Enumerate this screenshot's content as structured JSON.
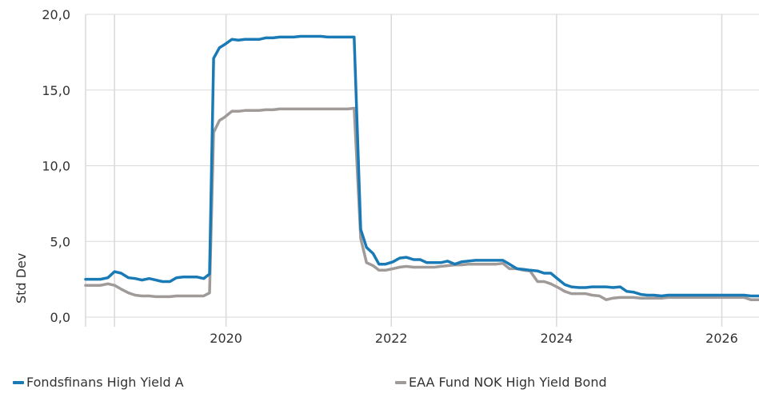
{
  "chart_data": {
    "type": "line",
    "title": "",
    "xlabel": "",
    "ylabel": "Std Dev",
    "ylim": [
      0,
      20
    ],
    "xlim": [
      2018.3,
      2026.45
    ],
    "y_ticks": [
      {
        "value": 0,
        "label": "0,0"
      },
      {
        "value": 5,
        "label": "5,0"
      },
      {
        "value": 10,
        "label": "10,0"
      },
      {
        "value": 15,
        "label": "15,0"
      },
      {
        "value": 20,
        "label": "20,0"
      }
    ],
    "x_ticks": [
      {
        "value": 2020,
        "label": "2020"
      },
      {
        "value": 2022,
        "label": "2022"
      },
      {
        "value": 2024,
        "label": "2024"
      },
      {
        "value": 2026,
        "label": "2026"
      }
    ],
    "x_gridlines": [
      2018.65,
      2020,
      2022,
      2024,
      2026
    ],
    "grid": true,
    "legend_position": "bottom",
    "series": [
      {
        "name": "Fondsfinans High Yield A",
        "color": "#1a7ab5",
        "points": [
          [
            2018.3,
            2.5
          ],
          [
            2018.4,
            2.5
          ],
          [
            2018.48,
            2.5
          ],
          [
            2018.57,
            2.6
          ],
          [
            2018.65,
            3.0
          ],
          [
            2018.73,
            2.9
          ],
          [
            2018.82,
            2.6
          ],
          [
            2018.9,
            2.55
          ],
          [
            2018.98,
            2.45
          ],
          [
            2019.07,
            2.55
          ],
          [
            2019.15,
            2.45
          ],
          [
            2019.23,
            2.35
          ],
          [
            2019.32,
            2.35
          ],
          [
            2019.4,
            2.6
          ],
          [
            2019.48,
            2.65
          ],
          [
            2019.57,
            2.65
          ],
          [
            2019.65,
            2.65
          ],
          [
            2019.73,
            2.55
          ],
          [
            2019.8,
            2.85
          ],
          [
            2019.85,
            17.1
          ],
          [
            2019.92,
            17.8
          ],
          [
            2019.98,
            18.0
          ],
          [
            2020.07,
            18.35
          ],
          [
            2020.15,
            18.3
          ],
          [
            2020.23,
            18.35
          ],
          [
            2020.32,
            18.35
          ],
          [
            2020.4,
            18.35
          ],
          [
            2020.48,
            18.45
          ],
          [
            2020.57,
            18.45
          ],
          [
            2020.65,
            18.5
          ],
          [
            2020.73,
            18.5
          ],
          [
            2020.82,
            18.5
          ],
          [
            2020.9,
            18.55
          ],
          [
            2020.98,
            18.55
          ],
          [
            2021.07,
            18.55
          ],
          [
            2021.15,
            18.55
          ],
          [
            2021.23,
            18.5
          ],
          [
            2021.32,
            18.5
          ],
          [
            2021.4,
            18.5
          ],
          [
            2021.48,
            18.5
          ],
          [
            2021.55,
            18.5
          ],
          [
            2021.63,
            5.8
          ],
          [
            2021.7,
            4.6
          ],
          [
            2021.78,
            4.2
          ],
          [
            2021.85,
            3.5
          ],
          [
            2021.93,
            3.5
          ],
          [
            2022.02,
            3.65
          ],
          [
            2022.1,
            3.9
          ],
          [
            2022.18,
            3.95
          ],
          [
            2022.27,
            3.8
          ],
          [
            2022.35,
            3.8
          ],
          [
            2022.43,
            3.6
          ],
          [
            2022.52,
            3.6
          ],
          [
            2022.6,
            3.6
          ],
          [
            2022.68,
            3.7
          ],
          [
            2022.77,
            3.5
          ],
          [
            2022.85,
            3.65
          ],
          [
            2022.93,
            3.7
          ],
          [
            2023.02,
            3.75
          ],
          [
            2023.1,
            3.75
          ],
          [
            2023.18,
            3.75
          ],
          [
            2023.27,
            3.75
          ],
          [
            2023.35,
            3.75
          ],
          [
            2023.43,
            3.5
          ],
          [
            2023.52,
            3.2
          ],
          [
            2023.6,
            3.15
          ],
          [
            2023.68,
            3.1
          ],
          [
            2023.77,
            3.05
          ],
          [
            2023.85,
            2.9
          ],
          [
            2023.93,
            2.9
          ],
          [
            2024.02,
            2.5
          ],
          [
            2024.1,
            2.15
          ],
          [
            2024.18,
            2.0
          ],
          [
            2024.27,
            1.95
          ],
          [
            2024.35,
            1.95
          ],
          [
            2024.43,
            2.0
          ],
          [
            2024.52,
            2.0
          ],
          [
            2024.6,
            2.0
          ],
          [
            2024.68,
            1.95
          ],
          [
            2024.77,
            2.0
          ],
          [
            2024.85,
            1.7
          ],
          [
            2024.93,
            1.65
          ],
          [
            2025.02,
            1.5
          ],
          [
            2025.1,
            1.45
          ],
          [
            2025.18,
            1.45
          ],
          [
            2025.27,
            1.4
          ],
          [
            2025.35,
            1.45
          ],
          [
            2025.43,
            1.45
          ],
          [
            2025.52,
            1.45
          ],
          [
            2025.6,
            1.45
          ],
          [
            2025.68,
            1.45
          ],
          [
            2025.77,
            1.45
          ],
          [
            2025.85,
            1.45
          ],
          [
            2025.93,
            1.45
          ],
          [
            2026.02,
            1.45
          ],
          [
            2026.1,
            1.45
          ],
          [
            2026.18,
            1.45
          ],
          [
            2026.27,
            1.45
          ],
          [
            2026.35,
            1.4
          ],
          [
            2026.45,
            1.4
          ]
        ]
      },
      {
        "name": "EAA Fund NOK High Yield Bond",
        "color": "#a09a98",
        "points": [
          [
            2018.3,
            2.1
          ],
          [
            2018.4,
            2.1
          ],
          [
            2018.48,
            2.1
          ],
          [
            2018.57,
            2.2
          ],
          [
            2018.65,
            2.1
          ],
          [
            2018.73,
            1.85
          ],
          [
            2018.82,
            1.6
          ],
          [
            2018.9,
            1.45
          ],
          [
            2018.98,
            1.4
          ],
          [
            2019.07,
            1.4
          ],
          [
            2019.15,
            1.35
          ],
          [
            2019.23,
            1.35
          ],
          [
            2019.32,
            1.35
          ],
          [
            2019.4,
            1.4
          ],
          [
            2019.48,
            1.4
          ],
          [
            2019.57,
            1.4
          ],
          [
            2019.65,
            1.4
          ],
          [
            2019.73,
            1.4
          ],
          [
            2019.8,
            1.6
          ],
          [
            2019.85,
            12.2
          ],
          [
            2019.92,
            13.0
          ],
          [
            2019.98,
            13.2
          ],
          [
            2020.07,
            13.6
          ],
          [
            2020.15,
            13.6
          ],
          [
            2020.23,
            13.65
          ],
          [
            2020.32,
            13.65
          ],
          [
            2020.4,
            13.65
          ],
          [
            2020.48,
            13.7
          ],
          [
            2020.57,
            13.7
          ],
          [
            2020.65,
            13.75
          ],
          [
            2020.73,
            13.75
          ],
          [
            2020.82,
            13.75
          ],
          [
            2020.9,
            13.75
          ],
          [
            2020.98,
            13.75
          ],
          [
            2021.07,
            13.75
          ],
          [
            2021.15,
            13.75
          ],
          [
            2021.23,
            13.75
          ],
          [
            2021.32,
            13.75
          ],
          [
            2021.4,
            13.75
          ],
          [
            2021.48,
            13.75
          ],
          [
            2021.55,
            13.8
          ],
          [
            2021.63,
            5.2
          ],
          [
            2021.7,
            3.6
          ],
          [
            2021.78,
            3.4
          ],
          [
            2021.85,
            3.1
          ],
          [
            2021.93,
            3.1
          ],
          [
            2022.02,
            3.2
          ],
          [
            2022.1,
            3.3
          ],
          [
            2022.18,
            3.35
          ],
          [
            2022.27,
            3.3
          ],
          [
            2022.35,
            3.3
          ],
          [
            2022.43,
            3.3
          ],
          [
            2022.52,
            3.3
          ],
          [
            2022.6,
            3.35
          ],
          [
            2022.68,
            3.4
          ],
          [
            2022.77,
            3.45
          ],
          [
            2022.85,
            3.45
          ],
          [
            2022.93,
            3.5
          ],
          [
            2023.02,
            3.5
          ],
          [
            2023.1,
            3.5
          ],
          [
            2023.18,
            3.5
          ],
          [
            2023.27,
            3.5
          ],
          [
            2023.35,
            3.55
          ],
          [
            2023.43,
            3.2
          ],
          [
            2023.52,
            3.2
          ],
          [
            2023.6,
            3.1
          ],
          [
            2023.68,
            3.05
          ],
          [
            2023.77,
            2.35
          ],
          [
            2023.85,
            2.35
          ],
          [
            2023.93,
            2.2
          ],
          [
            2024.02,
            1.95
          ],
          [
            2024.1,
            1.7
          ],
          [
            2024.18,
            1.55
          ],
          [
            2024.27,
            1.55
          ],
          [
            2024.35,
            1.55
          ],
          [
            2024.43,
            1.45
          ],
          [
            2024.52,
            1.4
          ],
          [
            2024.6,
            1.15
          ],
          [
            2024.68,
            1.25
          ],
          [
            2024.77,
            1.3
          ],
          [
            2024.85,
            1.3
          ],
          [
            2024.93,
            1.3
          ],
          [
            2025.02,
            1.25
          ],
          [
            2025.1,
            1.25
          ],
          [
            2025.18,
            1.25
          ],
          [
            2025.27,
            1.25
          ],
          [
            2025.35,
            1.3
          ],
          [
            2025.43,
            1.3
          ],
          [
            2025.52,
            1.3
          ],
          [
            2025.6,
            1.3
          ],
          [
            2025.68,
            1.3
          ],
          [
            2025.77,
            1.3
          ],
          [
            2025.85,
            1.3
          ],
          [
            2025.93,
            1.3
          ],
          [
            2026.02,
            1.3
          ],
          [
            2026.1,
            1.3
          ],
          [
            2026.18,
            1.3
          ],
          [
            2026.27,
            1.3
          ],
          [
            2026.35,
            1.15
          ],
          [
            2026.45,
            1.15
          ]
        ]
      }
    ]
  }
}
